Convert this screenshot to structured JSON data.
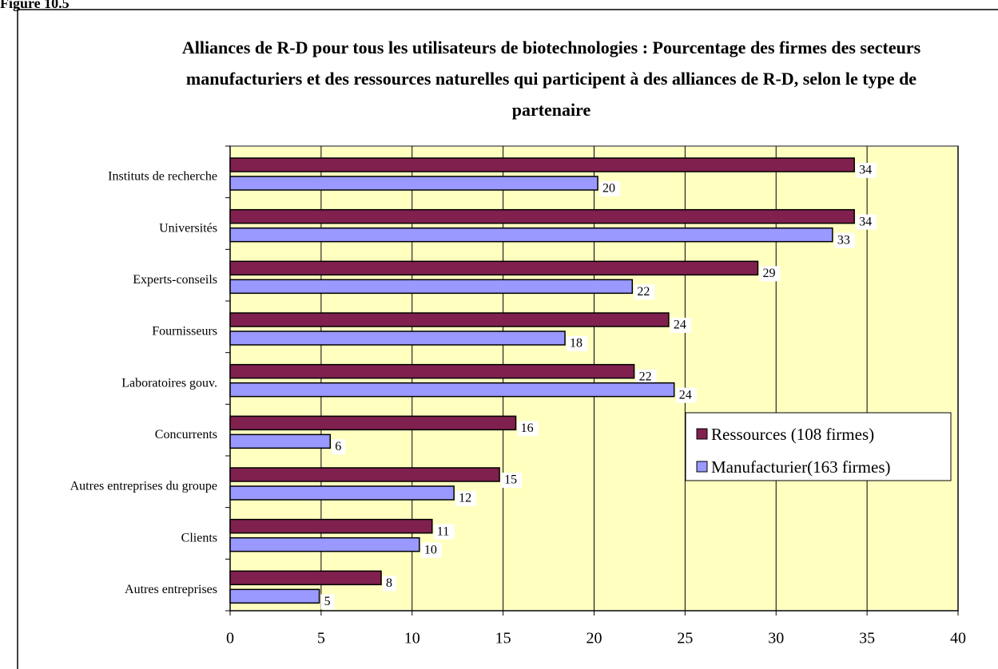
{
  "figure_label": "Figure 10.5",
  "chart_data": {
    "type": "barh",
    "title": "Alliances de R-D pour tous les utilisateurs de biotechnologies : Pourcentage des firmes des secteurs manufacturiers et des ressources naturelles qui participent à des alliances de R-D, selon le type de partenaire",
    "categories": [
      "Instituts de recherche",
      "Universités",
      "Experts-conseils",
      "Fournisseurs",
      "Laboratoires gouv.",
      "Concurrents",
      "Autres entreprises du groupe",
      "Clients",
      "Autres entreprises"
    ],
    "series": [
      {
        "name": "Ressources (108 firmes)",
        "color": "#80204f",
        "values": [
          34.3,
          34.3,
          29,
          24.1,
          22.2,
          15.7,
          14.8,
          11.1,
          8.3
        ],
        "value_labels": [
          "34",
          "34",
          "29",
          "24",
          "22",
          "16",
          "15",
          "11",
          "8"
        ]
      },
      {
        "name": "Manufacturier(163 firmes)",
        "color": "#9999ff",
        "values": [
          20.2,
          33.1,
          22.1,
          18.4,
          24.4,
          5.5,
          12.3,
          10.4,
          4.9
        ],
        "value_labels": [
          "20",
          "33",
          "22",
          "18",
          "24",
          "6",
          "12",
          "10",
          "5"
        ]
      }
    ],
    "xlim": [
      0,
      40
    ],
    "xticks": [
      0,
      5,
      10,
      15,
      20,
      25,
      30,
      35,
      40
    ],
    "grid": true,
    "legend": "right",
    "background": "#ffffc0"
  }
}
